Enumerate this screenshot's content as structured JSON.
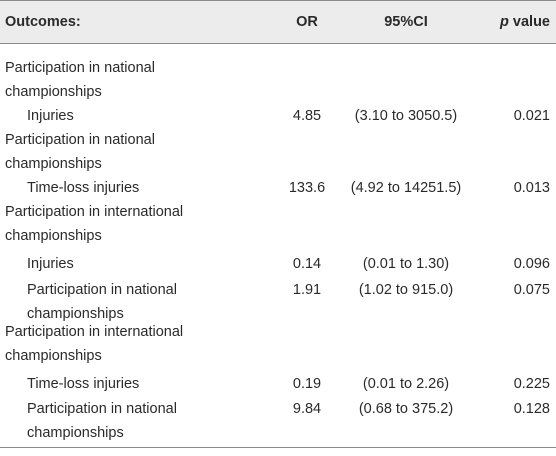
{
  "header": {
    "outcomes": "Outcomes:",
    "or": "OR",
    "ci": "95%CI",
    "p_italic": "p",
    "p_rest": " value"
  },
  "rows": [
    {
      "type": "group",
      "label_line1": "Participation in national",
      "label_line2": "championships"
    },
    {
      "type": "data",
      "label": "Injuries",
      "or": "4.85",
      "ci": "(3.10 to 3050.5)",
      "p": "0.021"
    },
    {
      "type": "group",
      "label_line1": "Participation in national",
      "label_line2": "championships"
    },
    {
      "type": "data",
      "label": "Time-loss injuries",
      "or": "133.6",
      "ci": "(4.92 to 14251.5)",
      "p": "0.013"
    },
    {
      "type": "group",
      "label_line1": "Participation in international",
      "label_line2": "championships"
    },
    {
      "type": "data",
      "label": "Injuries",
      "or": "0.14",
      "ci": "(0.01 to 1.30)",
      "p": "0.096"
    },
    {
      "type": "data2",
      "label_line1": "Participation in national",
      "label_line2": "championships",
      "or": "1.91",
      "ci": "(1.02 to 915.0)",
      "p": "0.075"
    },
    {
      "type": "group",
      "label_line1": "Participation in international",
      "label_line2": "championships"
    },
    {
      "type": "data",
      "label": "Time-loss injuries",
      "or": "0.19",
      "ci": "(0.01 to 2.26)",
      "p": "0.225"
    },
    {
      "type": "data2",
      "label_line1": "Participation in national",
      "label_line2": "championships",
      "or": "9.84",
      "ci": "(0.68 to 375.2)",
      "p": "0.128"
    }
  ]
}
